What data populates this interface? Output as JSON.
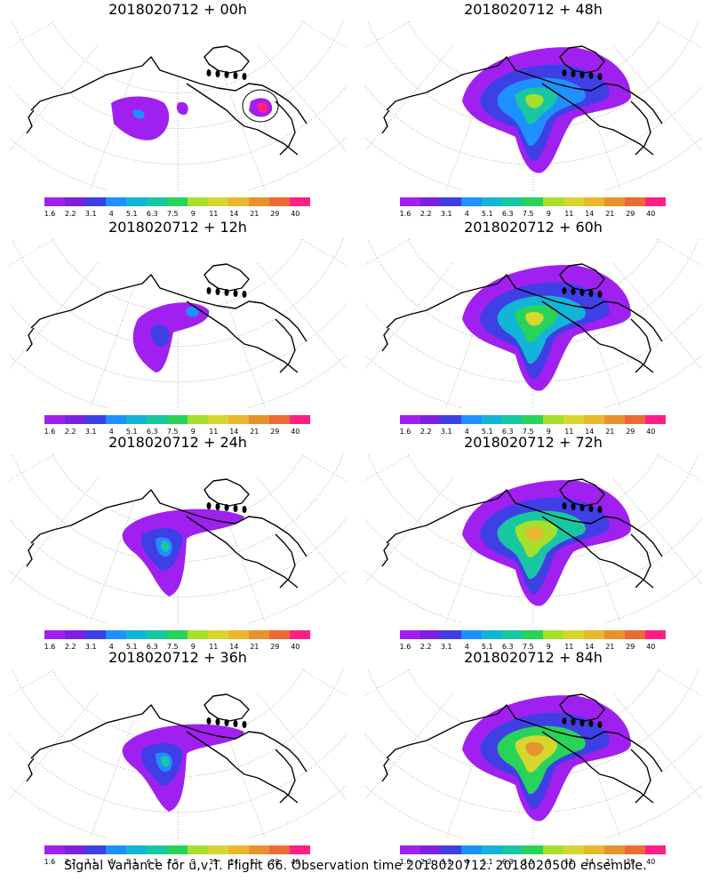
{
  "panels": [
    {
      "title": "2018020712 + 00h",
      "level": 0
    },
    {
      "title": "2018020712 + 48h",
      "level": 3
    },
    {
      "title": "2018020712 + 12h",
      "level": 1
    },
    {
      "title": "2018020712 + 60h",
      "level": 4
    },
    {
      "title": "2018020712 + 24h",
      "level": 2
    },
    {
      "title": "2018020712 + 72h",
      "level": 5
    },
    {
      "title": "2018020712 + 36h",
      "level": 2
    },
    {
      "title": "2018020712 + 84h",
      "level": 6
    }
  ],
  "colorbar": {
    "colors": [
      "#a020f0",
      "#7b22dd",
      "#3f3fe6",
      "#1e90ff",
      "#12b5d6",
      "#17c7a2",
      "#28d35a",
      "#a6df2c",
      "#d7d631",
      "#e8b82e",
      "#e8922e",
      "#ed6a36",
      "#ff1f85"
    ],
    "labels": [
      "1.6",
      "2.2",
      "3.1",
      "4",
      "5.1",
      "6.3",
      "7.5",
      "9",
      "11",
      "14",
      "21",
      "29",
      "40"
    ]
  },
  "footer": "Signal Variance for u,v,T. Flight 66. Observation time 2018020712. 2018020500 ensemble."
}
